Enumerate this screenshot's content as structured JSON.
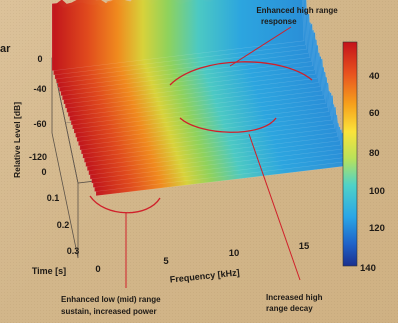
{
  "chart_data": {
    "type": "waterfall-3d-surface",
    "y_axis": {
      "label": "Relative Level [dB]",
      "ticks": [
        "0",
        "-40",
        "-60",
        "-120"
      ],
      "range": [
        -120,
        0
      ]
    },
    "time_axis": {
      "label": "Time [s]",
      "ticks": [
        "0",
        "0.1",
        "0.2",
        "0.3"
      ],
      "range": [
        0,
        0.33
      ]
    },
    "x_axis": {
      "label": "Frequency [kHz]",
      "ticks": [
        "0",
        "5",
        "10",
        "15"
      ],
      "range": [
        0,
        18
      ]
    },
    "colorbar": {
      "ticks": [
        "40",
        "60",
        "80",
        "100",
        "120",
        "140"
      ],
      "colors": [
        "#c4121b",
        "#e8521e",
        "#f6a21c",
        "#fbe33a",
        "#b9e25a",
        "#4fd2c8",
        "#2aa6e6",
        "#1f63c9",
        "#1a2f8e"
      ]
    },
    "annotations": [
      {
        "id": "high-range-response",
        "lines": [
          "Enhanced high range",
          "response"
        ]
      },
      {
        "id": "low-mid-sustain",
        "lines": [
          "Enhanced low (mid) range",
          "sustain, increased power"
        ]
      },
      {
        "id": "high-range-decay",
        "lines": [
          "Increased high",
          "range decay"
        ]
      }
    ],
    "edge_label": "ar"
  }
}
